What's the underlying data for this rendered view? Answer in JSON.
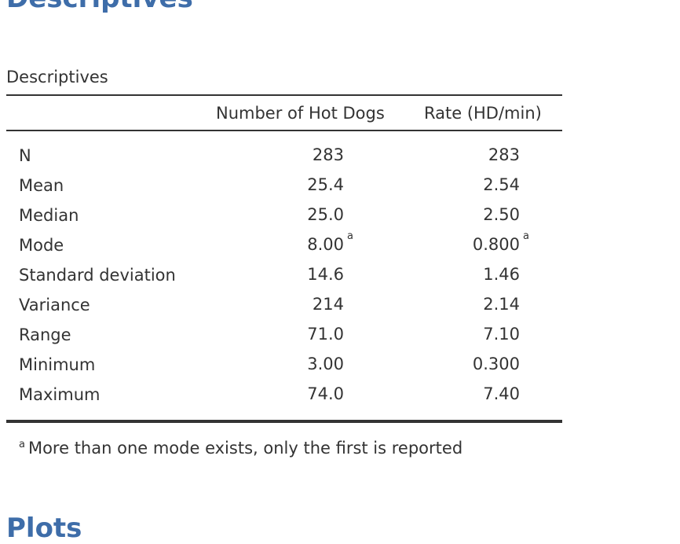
{
  "header": {
    "title": "Descriptives"
  },
  "table": {
    "title": "Descriptives",
    "columns": [
      "Number of Hot Dogs",
      "Rate (HD/min)"
    ],
    "rows": [
      {
        "label": "N",
        "values": [
          "283",
          "283"
        ]
      },
      {
        "label": "Mean",
        "values": [
          "25.4",
          "2.54"
        ]
      },
      {
        "label": "Median",
        "values": [
          "25.0",
          "2.50"
        ]
      },
      {
        "label": "Mode",
        "values": [
          "8.00",
          "0.800"
        ],
        "marks": [
          "a",
          "a"
        ]
      },
      {
        "label": "Standard deviation",
        "values": [
          "14.6",
          "1.46"
        ]
      },
      {
        "label": "Variance",
        "values": [
          "214",
          "2.14"
        ]
      },
      {
        "label": "Range",
        "values": [
          "71.0",
          "7.10"
        ]
      },
      {
        "label": "Minimum",
        "values": [
          "3.00",
          "0.300"
        ]
      },
      {
        "label": "Maximum",
        "values": [
          "74.0",
          "7.40"
        ]
      }
    ],
    "footnote": {
      "mark": "a",
      "text": "More than one mode exists, only the first is reported"
    }
  },
  "next_section": {
    "title": "Plots"
  }
}
